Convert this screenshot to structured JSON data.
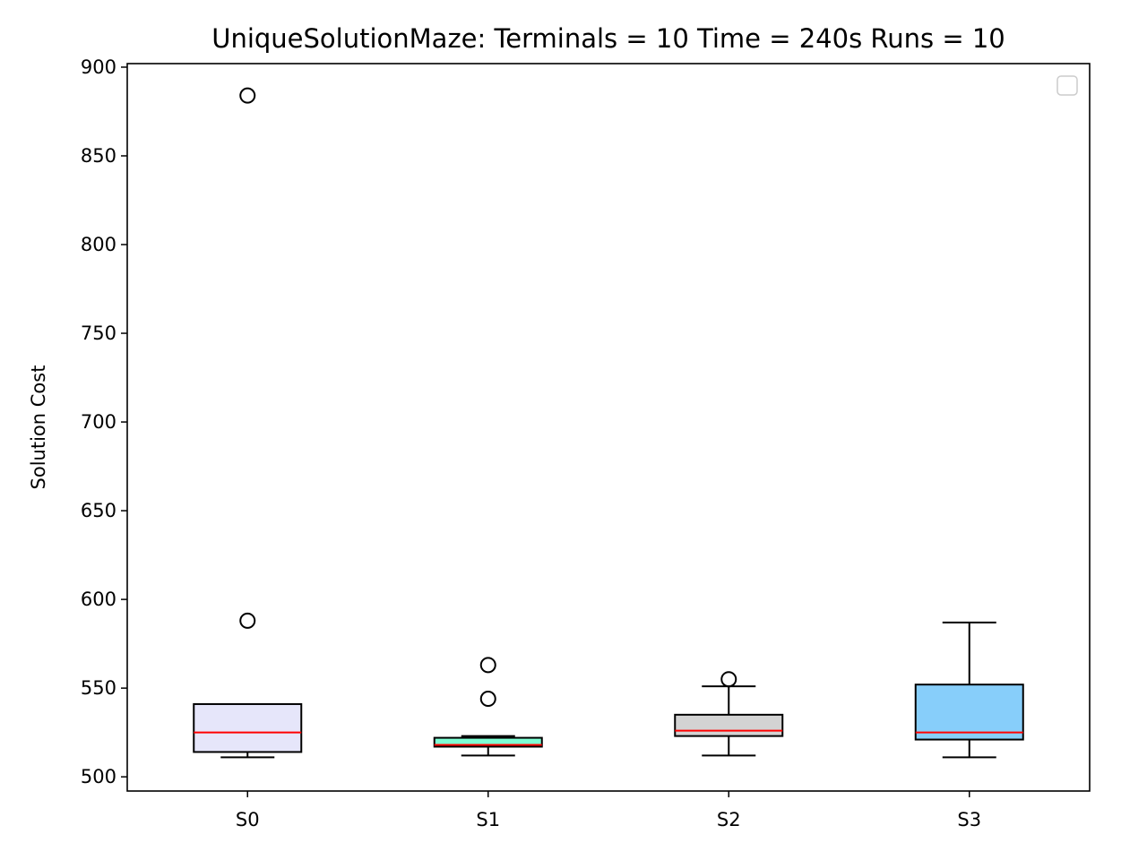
{
  "chart_data": {
    "type": "box",
    "title": "UniqueSolutionMaze:  Terminals = 10  Time = 240s  Runs = 10",
    "xlabel": "",
    "ylabel": "Solution Cost",
    "ylim": [
      492,
      902
    ],
    "yticks": [
      500,
      550,
      600,
      650,
      700,
      750,
      800,
      850,
      900
    ],
    "grid": false,
    "legend": {
      "placement": "top-right",
      "entries": []
    },
    "median_color": "#ff0000",
    "categories": [
      "S0",
      "S1",
      "S2",
      "S3"
    ],
    "boxes": [
      {
        "label": "S0",
        "color": "#e6e6fa",
        "whisker_low": 511,
        "q1": 514,
        "median": 525,
        "q3": 541,
        "whisker_high": 541,
        "outliers": [
          588,
          884
        ]
      },
      {
        "label": "S1",
        "color": "#7fffd4",
        "whisker_low": 512,
        "q1": 517,
        "median": 518,
        "q3": 522,
        "whisker_high": 523,
        "outliers": [
          544,
          563
        ]
      },
      {
        "label": "S2",
        "color": "#d3d3d3",
        "whisker_low": 512,
        "q1": 523,
        "median": 526,
        "q3": 535,
        "whisker_high": 551,
        "outliers": [
          555
        ]
      },
      {
        "label": "S3",
        "color": "#87cefa",
        "whisker_low": 511,
        "q1": 521,
        "median": 525,
        "q3": 552,
        "whisker_high": 587,
        "outliers": []
      }
    ]
  }
}
